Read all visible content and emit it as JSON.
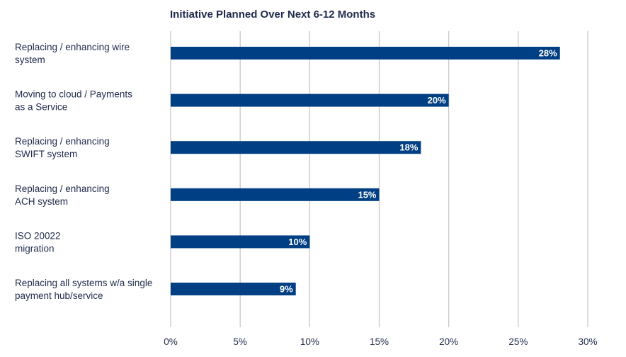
{
  "chart_data": {
    "type": "bar",
    "orientation": "horizontal",
    "title": "Initiative Planned Over Next 6-12 Months",
    "categories": [
      [
        "Replacing / enhancing wire",
        "system"
      ],
      [
        "Moving to cloud / Payments",
        "as a Service"
      ],
      [
        "Replacing / enhancing",
        "SWIFT system"
      ],
      [
        "Replacing / enhancing",
        "ACH system"
      ],
      [
        "ISO 20022",
        "migration"
      ],
      [
        "Replacing all systems w/a single",
        "payment hub/service"
      ]
    ],
    "values": [
      28,
      20,
      18,
      15,
      10,
      9
    ],
    "value_labels": [
      "28%",
      "20%",
      "18%",
      "15%",
      "10%",
      "9%"
    ],
    "xlim": [
      0,
      30
    ],
    "x_ticks": [
      0,
      5,
      10,
      15,
      20,
      25,
      30
    ],
    "x_tick_labels": [
      "0%",
      "5%",
      "10%",
      "15%",
      "20%",
      "25%",
      "30%"
    ],
    "grid": true,
    "legend": "none",
    "colors": {
      "bar": "#003f83",
      "grid": "#c4c4c4",
      "text": "#1e2a4a",
      "value_text": "#ffffff"
    }
  }
}
